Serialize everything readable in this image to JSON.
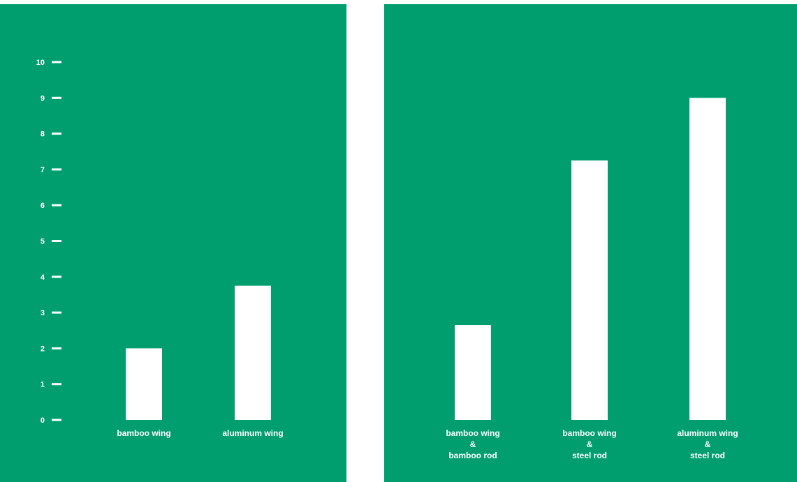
{
  "colors": {
    "background": "#009e6e",
    "bars": "#ffffff",
    "text": "#ffffff"
  },
  "chart_data": [
    {
      "type": "bar",
      "title": "",
      "xlabel": "",
      "ylabel": "",
      "ylim": [
        0,
        10
      ],
      "yticks": [
        "0",
        "1",
        "2",
        "3",
        "4",
        "5",
        "6",
        "7",
        "8",
        "9",
        "10"
      ],
      "categories": [
        [
          "bamboo wing"
        ],
        [
          "aluminum wing"
        ]
      ],
      "values": [
        2,
        3.75
      ],
      "grid": false
    },
    {
      "type": "bar",
      "title": "",
      "xlabel": "",
      "ylabel": "",
      "ylim": [
        0,
        10
      ],
      "categories": [
        [
          "bamboo wing",
          "&",
          "bamboo rod"
        ],
        [
          "bamboo wing",
          "&",
          "steel rod"
        ],
        [
          "aluminum wing",
          "&",
          "steel rod"
        ]
      ],
      "values": [
        2.65,
        7.25,
        9
      ],
      "grid": false
    }
  ]
}
